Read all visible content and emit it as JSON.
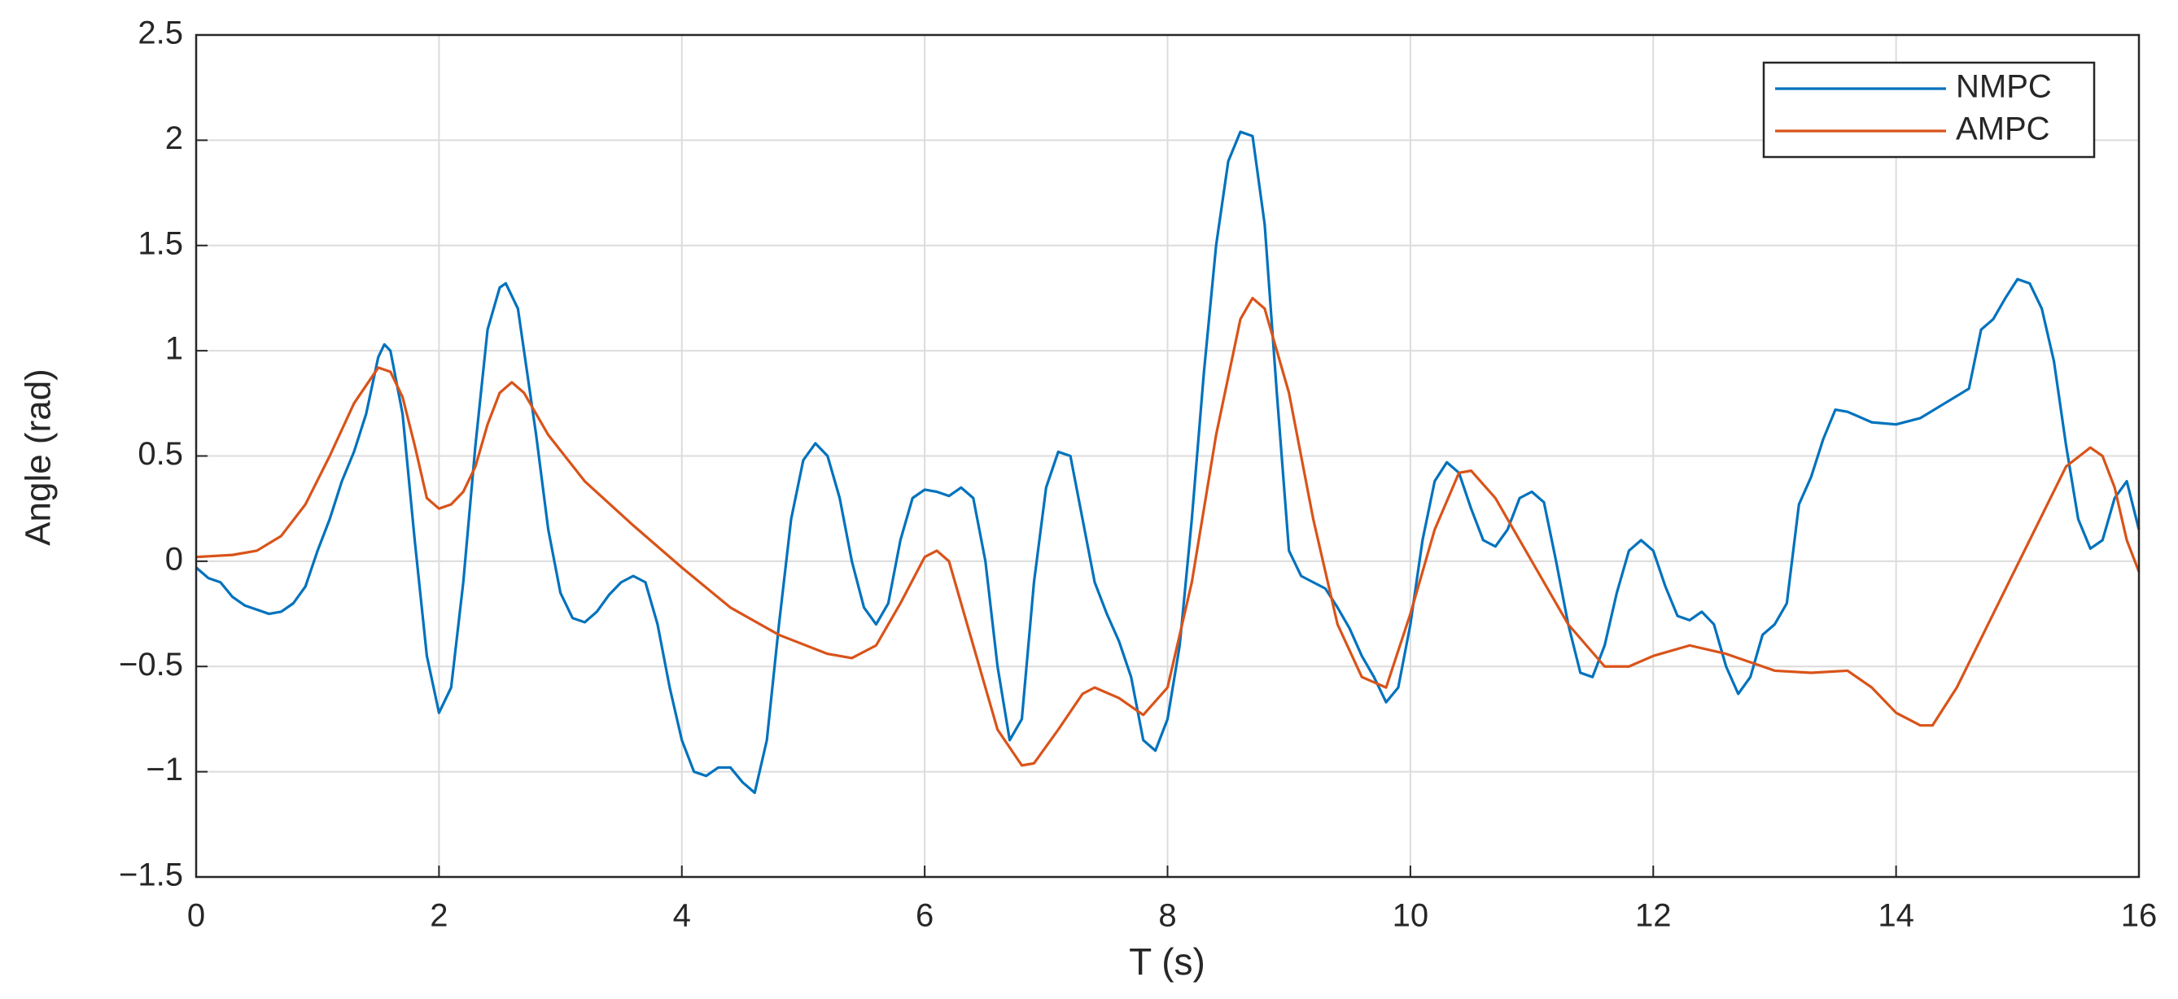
{
  "chart_data": {
    "type": "line",
    "xlabel": "T (s)",
    "ylabel": "Angle (rad)",
    "xlim": [
      0,
      16
    ],
    "xticks": [
      0,
      2,
      4,
      6,
      8,
      10,
      12,
      14,
      16
    ],
    "ylim": [
      -1.5,
      2.5
    ],
    "yticks": [
      {
        "value": -1.5,
        "label": "−1.5"
      },
      {
        "value": -1,
        "label": "−1"
      },
      {
        "value": -0.5,
        "label": "−0.5"
      },
      0,
      0.5,
      1,
      1.5,
      2,
      2.5
    ],
    "grid": true,
    "legend": "northeast",
    "series": [
      {
        "name": "NMPC",
        "color": "#0072BD",
        "x": [
          0,
          0.1,
          0.2,
          0.3,
          0.4,
          0.5,
          0.6,
          0.7,
          0.8,
          0.9,
          1.0,
          1.1,
          1.2,
          1.3,
          1.4,
          1.5,
          1.55,
          1.6,
          1.7,
          1.8,
          1.9,
          2.0,
          2.1,
          2.2,
          2.3,
          2.4,
          2.5,
          2.55,
          2.65,
          2.8,
          2.9,
          3.0,
          3.1,
          3.2,
          3.3,
          3.4,
          3.5,
          3.6,
          3.7,
          3.8,
          3.9,
          4.0,
          4.1,
          4.2,
          4.3,
          4.4,
          4.5,
          4.6,
          4.7,
          4.8,
          4.9,
          5.0,
          5.1,
          5.2,
          5.3,
          5.4,
          5.5,
          5.6,
          5.7,
          5.8,
          5.9,
          6.0,
          6.1,
          6.2,
          6.3,
          6.4,
          6.5,
          6.6,
          6.7,
          6.8,
          6.9,
          7.0,
          7.1,
          7.2,
          7.3,
          7.4,
          7.5,
          7.6,
          7.7,
          7.8,
          7.9,
          8.0,
          8.1,
          8.2,
          8.3,
          8.4,
          8.5,
          8.6,
          8.7,
          8.8,
          8.9,
          9.0,
          9.1,
          9.2,
          9.3,
          9.4,
          9.5,
          9.6,
          9.7,
          9.8,
          9.9,
          10.0,
          10.1,
          10.2,
          10.3,
          10.4,
          10.5,
          10.6,
          10.7,
          10.8,
          10.9,
          11.0,
          11.1,
          11.2,
          11.3,
          11.4,
          11.5,
          11.6,
          11.7,
          11.8,
          11.9,
          12.0,
          12.1,
          12.2,
          12.3,
          12.4,
          12.5,
          12.6,
          12.7,
          12.8,
          12.9,
          13.0,
          13.1,
          13.2,
          13.3,
          13.4,
          13.5,
          13.6,
          13.8,
          14.0,
          14.2,
          14.4,
          14.6,
          14.7,
          14.8,
          14.9,
          15.0,
          15.1,
          15.2,
          15.3,
          15.4,
          15.5,
          15.6,
          15.7,
          15.8,
          15.9,
          16.0
        ],
        "values": [
          -0.03,
          -0.08,
          -0.1,
          -0.17,
          -0.21,
          -0.23,
          -0.25,
          -0.24,
          -0.2,
          -0.12,
          0.05,
          0.2,
          0.38,
          0.52,
          0.7,
          0.97,
          1.03,
          1.0,
          0.7,
          0.1,
          -0.45,
          -0.72,
          -0.6,
          -0.1,
          0.55,
          1.1,
          1.3,
          1.32,
          1.2,
          0.6,
          0.15,
          -0.15,
          -0.27,
          -0.29,
          -0.24,
          -0.16,
          -0.1,
          -0.07,
          -0.1,
          -0.3,
          -0.6,
          -0.85,
          -1.0,
          -1.02,
          -0.98,
          -0.98,
          -1.05,
          -1.1,
          -0.85,
          -0.3,
          0.2,
          0.48,
          0.56,
          0.5,
          0.3,
          0.0,
          -0.22,
          -0.3,
          -0.2,
          0.1,
          0.3,
          0.34,
          0.33,
          0.31,
          0.35,
          0.3,
          0.0,
          -0.5,
          -0.85,
          -0.75,
          -0.1,
          0.35,
          0.52,
          0.5,
          0.2,
          -0.1,
          -0.25,
          -0.38,
          -0.55,
          -0.85,
          -0.9,
          -0.75,
          -0.4,
          0.2,
          0.9,
          1.5,
          1.9,
          2.04,
          2.02,
          1.6,
          0.8,
          0.05,
          -0.07,
          -0.1,
          -0.13,
          -0.22,
          -0.32,
          -0.45,
          -0.55,
          -0.67,
          -0.6,
          -0.3,
          0.1,
          0.38,
          0.47,
          0.42,
          0.25,
          0.1,
          0.07,
          0.15,
          0.3,
          0.33,
          0.28,
          0.0,
          -0.3,
          -0.53,
          -0.55,
          -0.4,
          -0.15,
          0.05,
          0.1,
          0.05,
          -0.12,
          -0.26,
          -0.28,
          -0.24,
          -0.3,
          -0.5,
          -0.63,
          -0.55,
          -0.35,
          -0.3,
          -0.2,
          0.27,
          0.4,
          0.58,
          0.72,
          0.71,
          0.66,
          0.65,
          0.68,
          0.75,
          0.82,
          1.1,
          1.15,
          1.25,
          1.34,
          1.32,
          1.2,
          0.95,
          0.55,
          0.2,
          0.06,
          0.1,
          0.3,
          0.38,
          0.15
        ]
      },
      {
        "name": "AMPC",
        "color": "#D95319",
        "x": [
          0,
          0.3,
          0.5,
          0.7,
          0.9,
          1.1,
          1.3,
          1.5,
          1.6,
          1.7,
          1.8,
          1.9,
          2.0,
          2.1,
          2.2,
          2.3,
          2.4,
          2.5,
          2.6,
          2.7,
          2.9,
          3.2,
          3.6,
          4.0,
          4.4,
          4.8,
          5.2,
          5.4,
          5.6,
          5.8,
          6.0,
          6.1,
          6.2,
          6.4,
          6.6,
          6.8,
          6.9,
          7.1,
          7.3,
          7.4,
          7.6,
          7.8,
          8.0,
          8.2,
          8.4,
          8.6,
          8.7,
          8.8,
          9.0,
          9.2,
          9.4,
          9.6,
          9.8,
          10.0,
          10.2,
          10.4,
          10.5,
          10.7,
          11.0,
          11.3,
          11.6,
          11.8,
          12.0,
          12.3,
          12.6,
          13.0,
          13.3,
          13.6,
          13.8,
          14.0,
          14.2,
          14.3,
          14.5,
          14.8,
          15.1,
          15.4,
          15.6,
          15.7,
          15.8,
          15.9,
          16.0
        ],
        "values": [
          0.02,
          0.03,
          0.05,
          0.12,
          0.27,
          0.5,
          0.75,
          0.92,
          0.9,
          0.78,
          0.55,
          0.3,
          0.25,
          0.27,
          0.33,
          0.45,
          0.65,
          0.8,
          0.85,
          0.8,
          0.6,
          0.38,
          0.17,
          -0.03,
          -0.22,
          -0.35,
          -0.44,
          -0.46,
          -0.4,
          -0.2,
          0.02,
          0.05,
          0.0,
          -0.4,
          -0.8,
          -0.97,
          -0.96,
          -0.8,
          -0.63,
          -0.6,
          -0.65,
          -0.73,
          -0.6,
          -0.1,
          0.6,
          1.15,
          1.25,
          1.2,
          0.8,
          0.2,
          -0.3,
          -0.55,
          -0.6,
          -0.25,
          0.15,
          0.42,
          0.43,
          0.3,
          0.0,
          -0.3,
          -0.5,
          -0.5,
          -0.45,
          -0.4,
          -0.44,
          -0.52,
          -0.53,
          -0.52,
          -0.6,
          -0.72,
          -0.78,
          -0.78,
          -0.6,
          -0.25,
          0.1,
          0.45,
          0.54,
          0.5,
          0.35,
          0.1,
          -0.05
        ]
      }
    ]
  }
}
